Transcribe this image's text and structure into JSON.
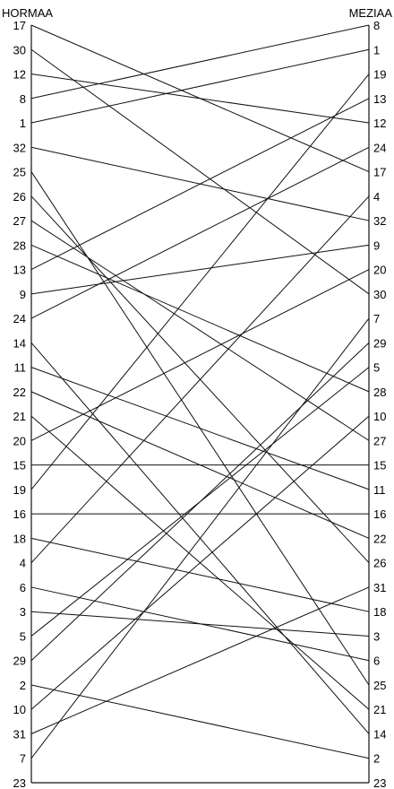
{
  "chart_data": {
    "type": "bipartite-lines",
    "left_title": "HORMAA",
    "right_title": "MEZIAA",
    "left_order": [
      "17",
      "30",
      "12",
      "8",
      "1",
      "32",
      "25",
      "26",
      "27",
      "28",
      "13",
      "9",
      "24",
      "14",
      "11",
      "22",
      "21",
      "20",
      "15",
      "19",
      "16",
      "18",
      "4",
      "6",
      "3",
      "5",
      "29",
      "2",
      "10",
      "31",
      "7",
      "23"
    ],
    "right_order": [
      "8",
      "1",
      "19",
      "13",
      "12",
      "24",
      "17",
      "4",
      "32",
      "9",
      "20",
      "30",
      "7",
      "29",
      "5",
      "28",
      "10",
      "27",
      "15",
      "11",
      "16",
      "22",
      "26",
      "31",
      "18",
      "3",
      "6",
      "25",
      "21",
      "14",
      "2",
      "23"
    ],
    "links_note": "each left label connects to the same label on the right"
  }
}
